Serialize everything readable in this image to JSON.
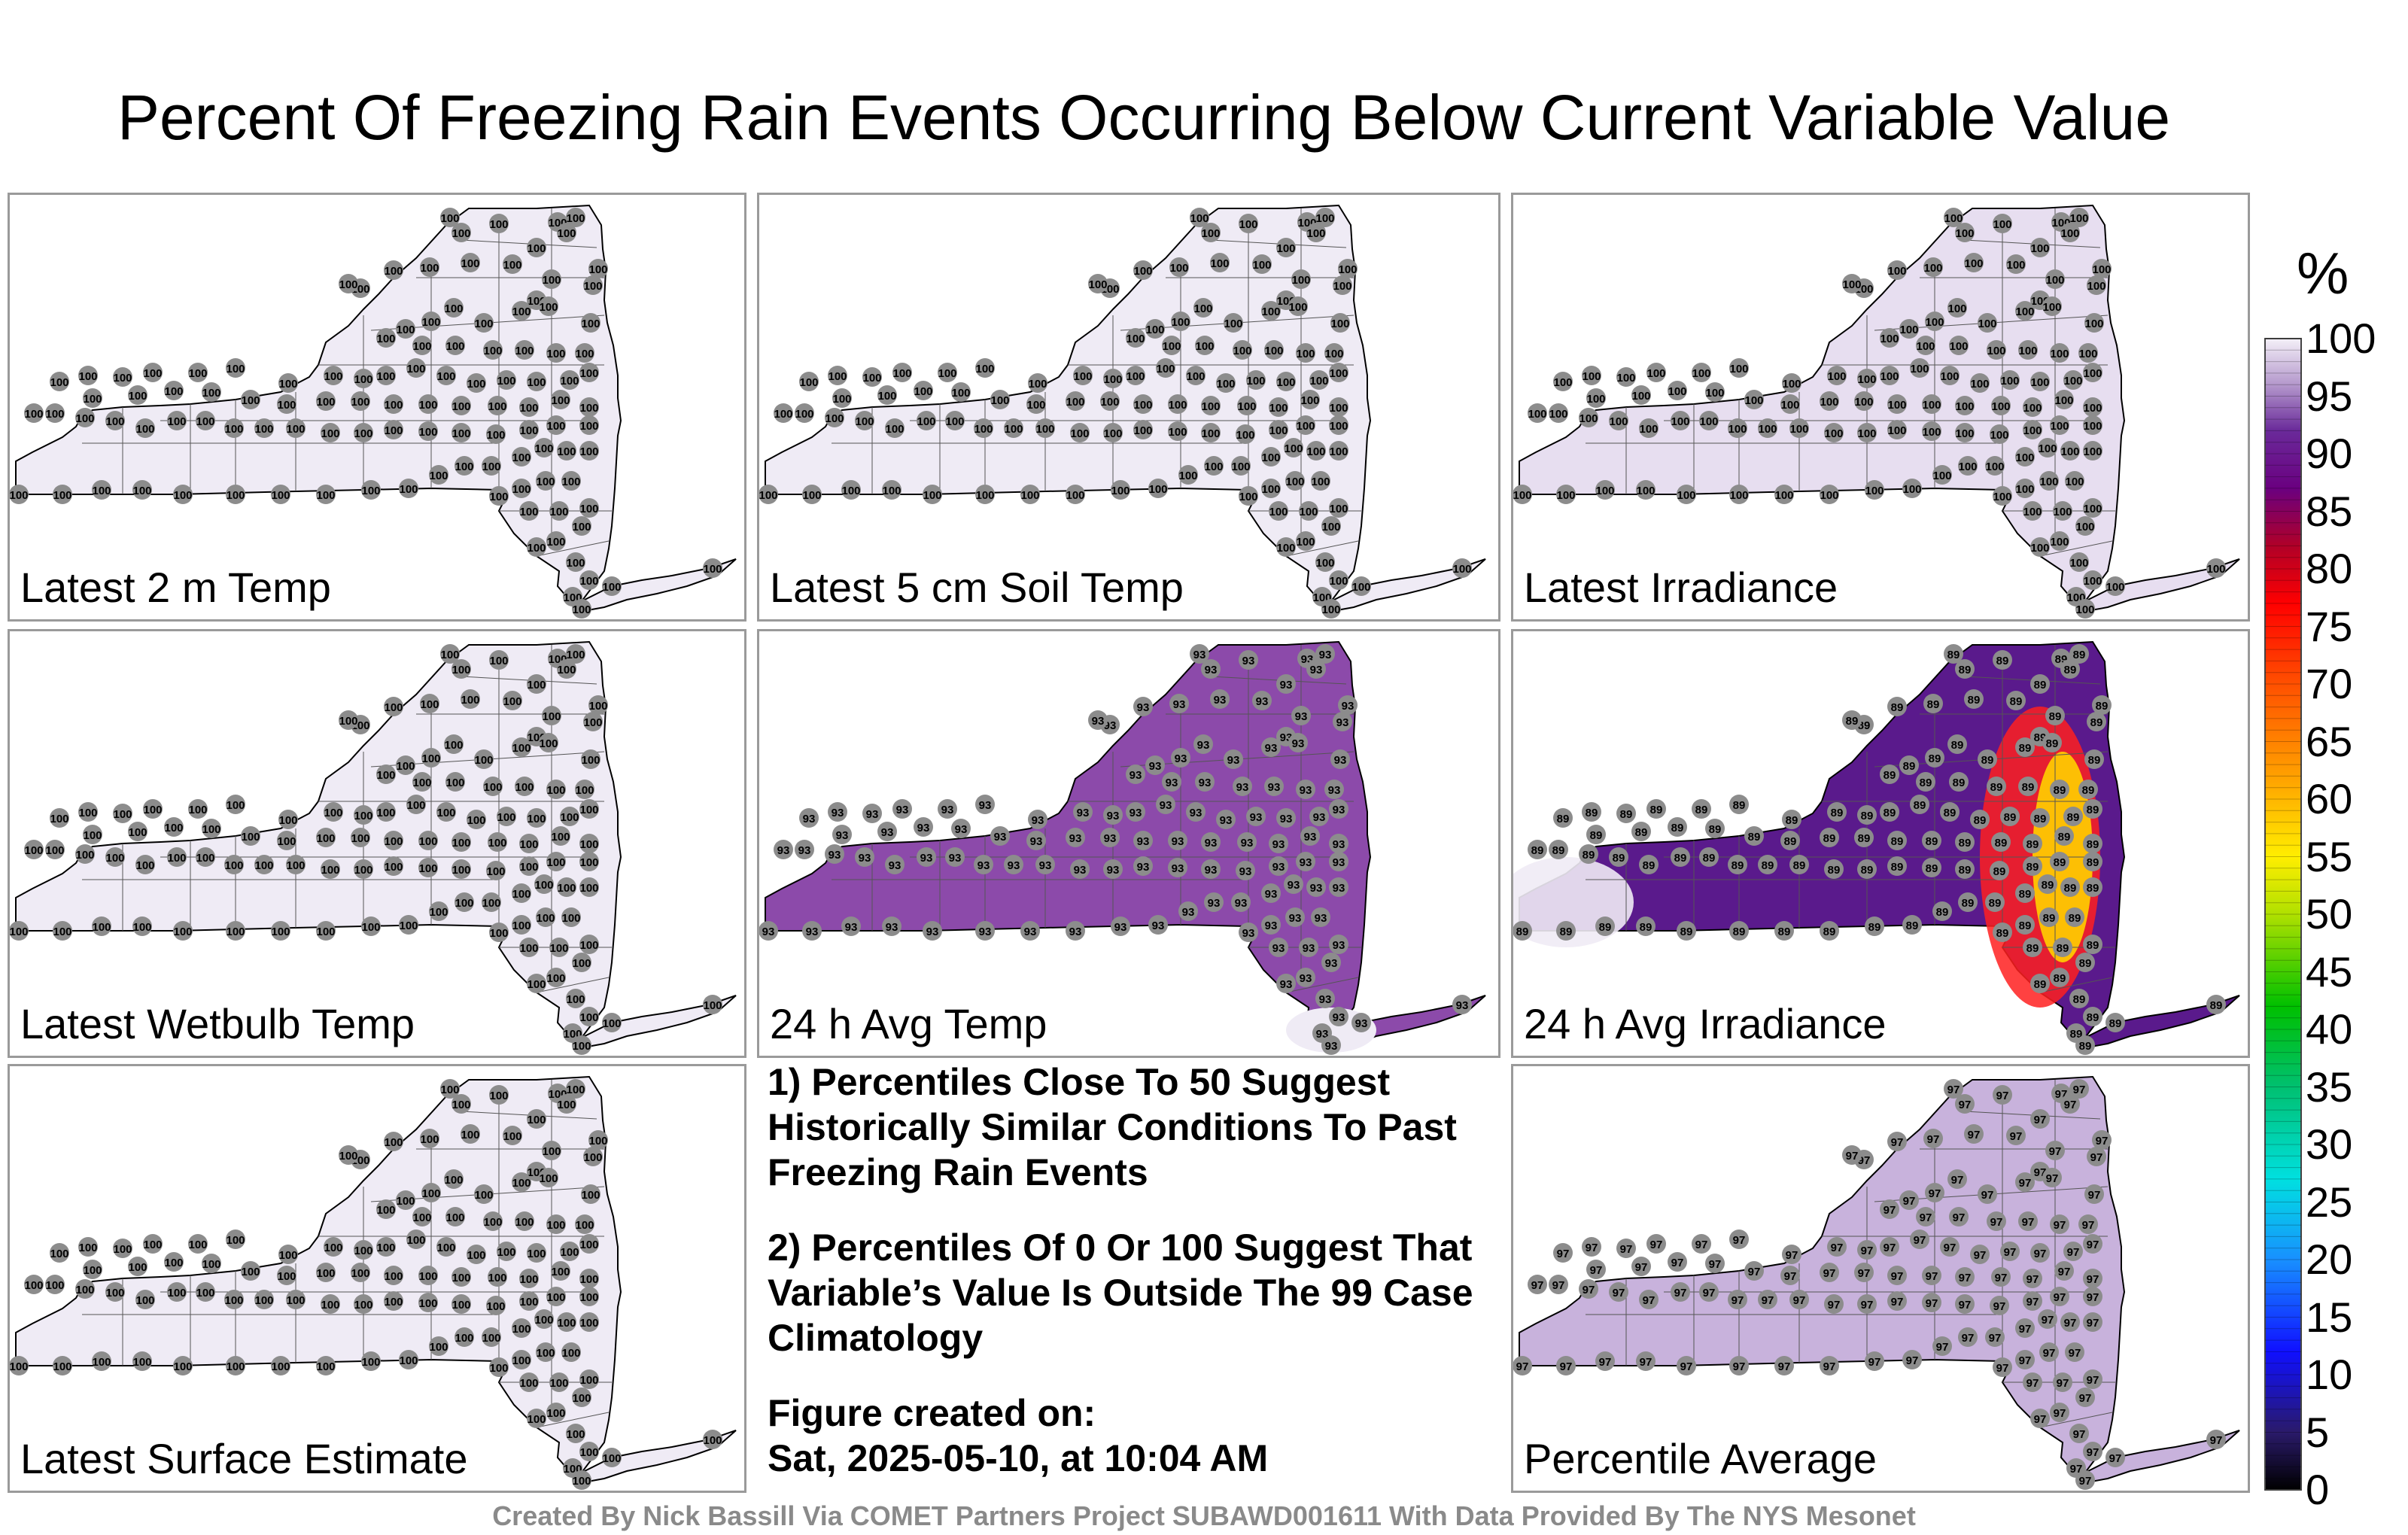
{
  "title": "Percent Of Freezing Rain Events Occurring Below Current Variable Value",
  "panels": [
    {
      "label": "Latest 2 m Temp",
      "fill": "#efebf5",
      "value": "100"
    },
    {
      "label": "Latest 5 cm Soil Temp",
      "fill": "#efebf5",
      "value": "100"
    },
    {
      "label": "Latest Irradiance",
      "fill": "#e7def0",
      "value": "100"
    },
    {
      "label": "Latest Wetbulb Temp",
      "fill": "#efebf5",
      "value": "100"
    },
    {
      "label": "24 h Avg Temp",
      "fill": "#8c4aaa",
      "value": "93"
    },
    {
      "label": "24 h Avg Irradiance",
      "fill": "#5a1a8c",
      "value": "89"
    },
    {
      "label": "Latest Surface Estimate",
      "fill": "#efebf5",
      "value": "100"
    },
    {
      "label": "Percentile Average",
      "fill": "#c8b2dc",
      "value": "97"
    }
  ],
  "notes": {
    "note1": "1) Percentiles Close To 50 Suggest Historically Similar Conditions To Past Freezing Rain Events",
    "note2": "2) Percentiles Of 0 Or 100 Suggest That Variable’s Value Is Outside The 99 Case Climatology",
    "created_label": "Figure created on:",
    "created_date": "Sat, 2025-05-10, at 10:04 AM"
  },
  "footer": "Created By Nick Bassill Via COMET Partners Project SUBAWD001611 With Data Provided By The NYS Mesonet",
  "colorbar": {
    "unit": "%",
    "ticks": [
      "100",
      "95",
      "90",
      "85",
      "80",
      "75",
      "70",
      "65",
      "60",
      "55",
      "50",
      "45",
      "40",
      "35",
      "30",
      "25",
      "20",
      "15",
      "10",
      "5",
      "0"
    ],
    "colors": [
      "#000000",
      "#2a0060",
      "#5a1a8c",
      "#8c4aaa",
      "#c8b2dc",
      "#f0ecf6",
      "#ff0000",
      "#ff8c00",
      "#ffee00",
      "#00c000",
      "#00e0e0",
      "#0000ff"
    ]
  }
}
